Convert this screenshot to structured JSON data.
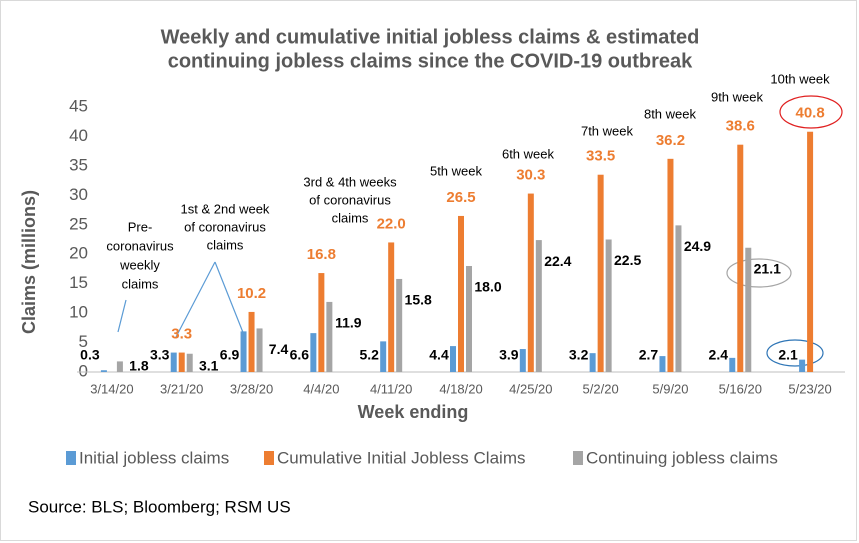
{
  "chart_data": {
    "type": "bar",
    "title": [
      "Weekly and cumulative initial jobless claims & estimated",
      "continuing jobless claims since the COVID-19 outbreak"
    ],
    "x_label": "Week ending",
    "y_label": "Claims (millions)",
    "categories": [
      "3/14/20",
      "3/21/20",
      "3/28/20",
      "4/4/20",
      "4/11/20",
      "4/18/20",
      "4/25/20",
      "5/2/20",
      "5/9/20",
      "5/16/20",
      "5/23/20"
    ],
    "series": [
      {
        "name": "Initial jobless claims",
        "color": "#5b9bd5",
        "values": [
          0.3,
          3.3,
          6.9,
          6.6,
          5.2,
          4.4,
          3.9,
          3.2,
          2.7,
          2.4,
          2.1
        ],
        "value_labels": [
          "0.3",
          "3.3",
          "6.9",
          "6.6",
          "5.2",
          "4.4",
          "3.9",
          "3.2",
          "2.7",
          "2.4",
          "2.1"
        ]
      },
      {
        "name": "Cumulative Initial Jobless Claims",
        "color": "#ed7d31",
        "values": [
          null,
          3.3,
          10.2,
          16.8,
          22.0,
          26.5,
          30.3,
          33.5,
          36.2,
          38.6,
          40.8
        ],
        "value_labels": [
          null,
          "3.3",
          "10.2",
          "16.8",
          "22.0",
          "26.5",
          "30.3",
          "33.5",
          "36.2",
          "38.6",
          "40.8"
        ]
      },
      {
        "name": "Continuing jobless claims",
        "color": "#a5a5a5",
        "values": [
          1.8,
          3.1,
          7.4,
          11.9,
          15.8,
          18.0,
          22.4,
          22.5,
          24.9,
          21.1,
          null
        ],
        "value_labels": [
          "1.8",
          "3.1",
          "7.4",
          "11.9",
          "15.8",
          "18.0",
          "22.4",
          "22.5",
          "24.9",
          "21.1",
          null
        ]
      }
    ],
    "ylim": [
      0,
      45
    ],
    "yticks": [
      0,
      5,
      10,
      15,
      20,
      25,
      30,
      35,
      40,
      45
    ],
    "annotations": [
      [
        "Pre-",
        "coronavirus",
        "weekly",
        "claims"
      ],
      [
        "1st & 2nd week",
        "of coronavirus",
        "claims"
      ],
      [
        "3rd & 4th weeks",
        "of coronavirus",
        "claims"
      ],
      [
        "5th week"
      ],
      [
        "6th week"
      ],
      [
        "7th week"
      ],
      [
        "8th week"
      ],
      [
        "9th week"
      ],
      [
        "10th week"
      ]
    ],
    "source": "Source: BLS; Bloomberg; RSM US"
  }
}
